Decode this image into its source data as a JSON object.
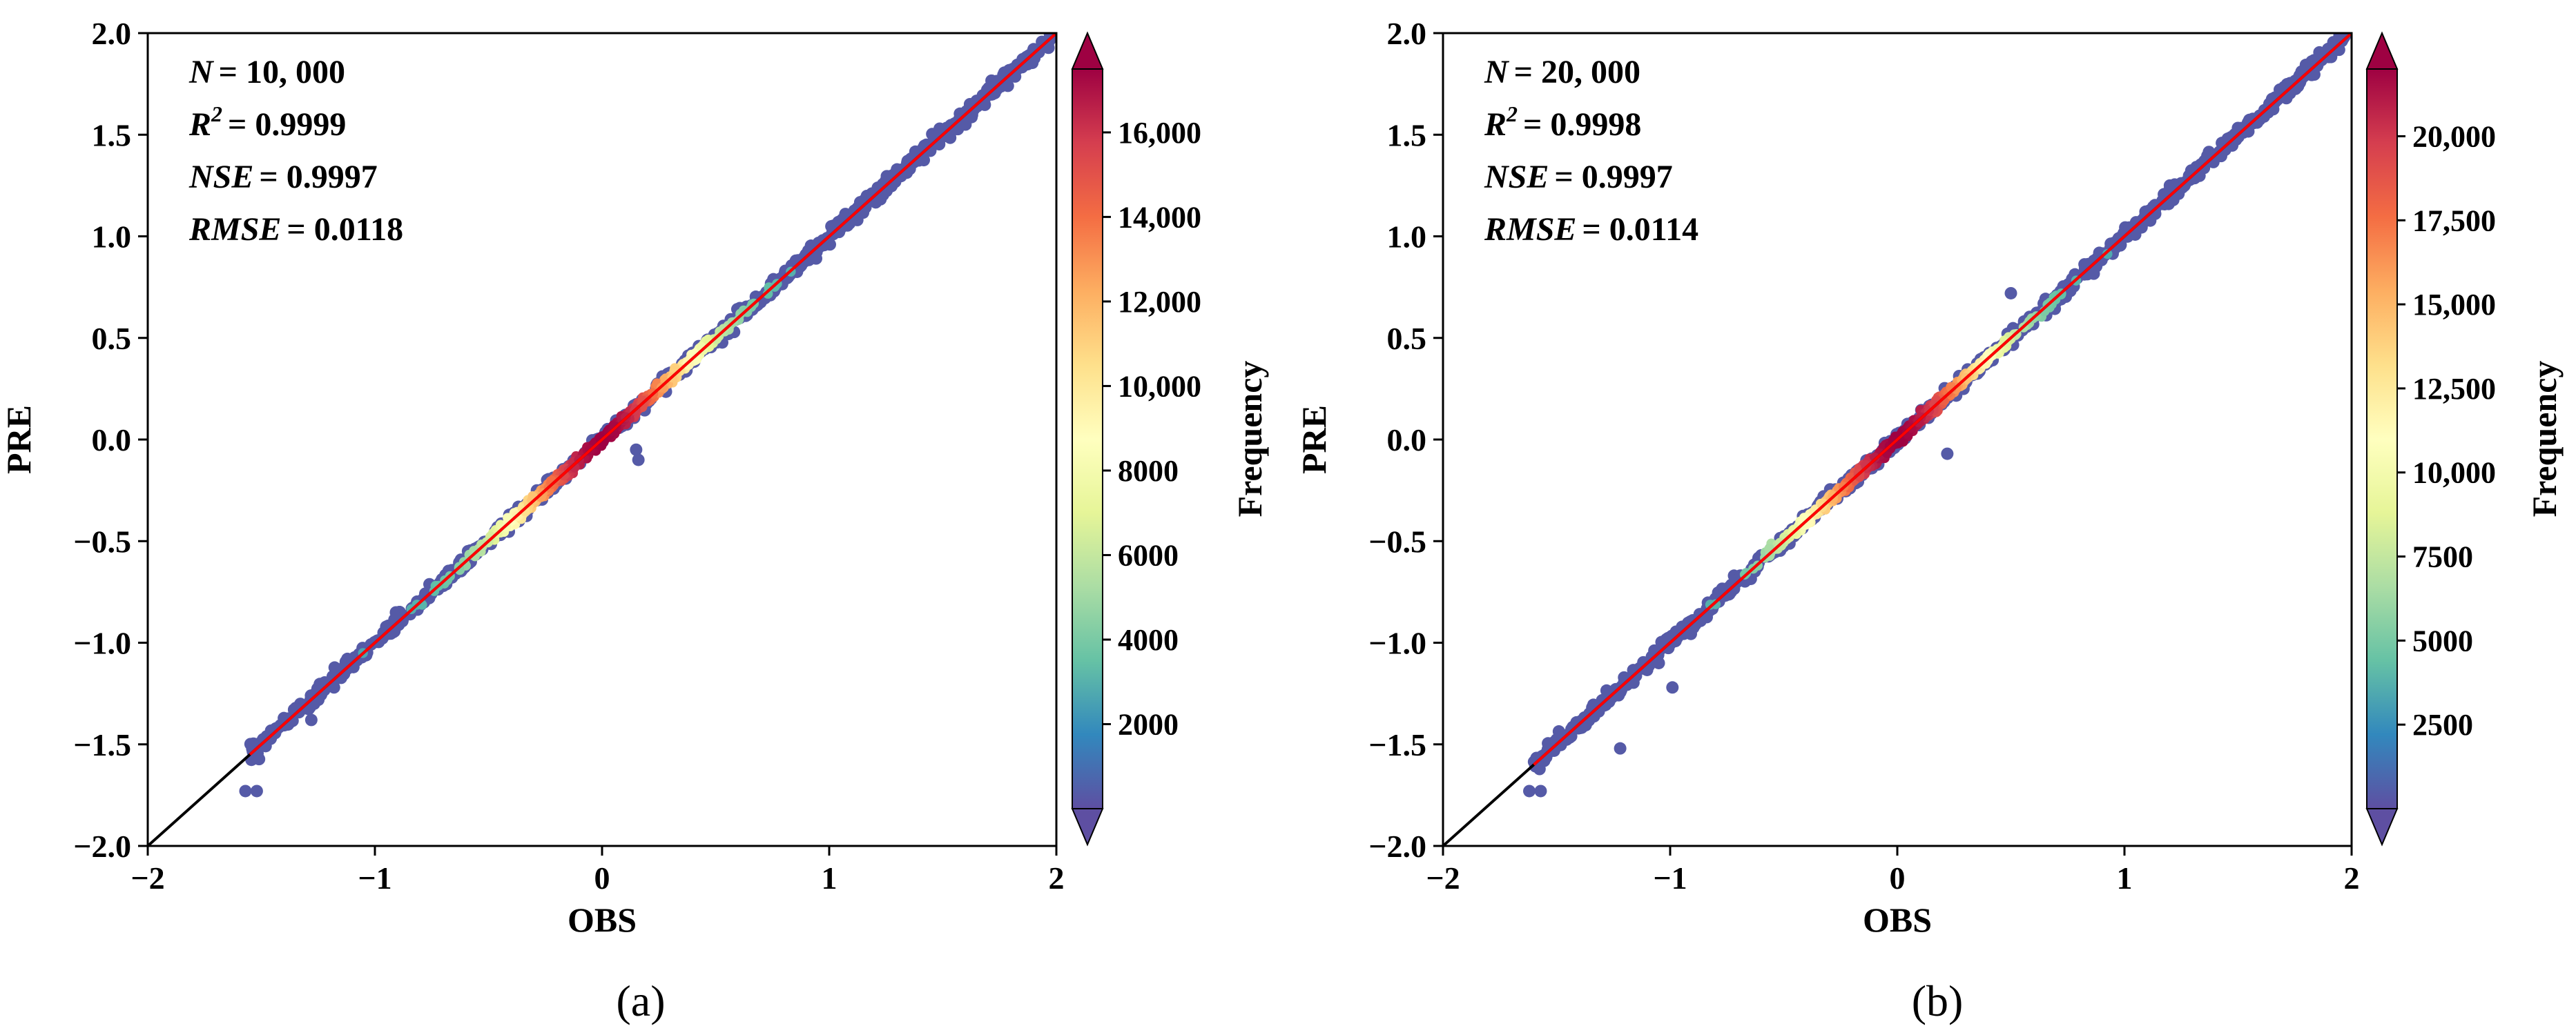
{
  "chart_data": [
    {
      "type": "scatter",
      "subplot_label": "(a)",
      "xlabel": "OBS",
      "ylabel": "PRE",
      "xlim": [
        -2,
        2
      ],
      "ylim": [
        -2,
        2
      ],
      "xticks": [
        -2,
        -1,
        0,
        1,
        2
      ],
      "xtick_labels": [
        "−2",
        "−1",
        "0",
        "1",
        "2"
      ],
      "yticks": [
        -2.0,
        -1.5,
        -1.0,
        -0.5,
        0.0,
        0.5,
        1.0,
        1.5,
        2.0
      ],
      "ytick_labels": [
        "−2.0",
        "−1.5",
        "−1.0",
        "−0.5",
        "0.0",
        "0.5",
        "1.0",
        "1.5",
        "2.0"
      ],
      "stats": {
        "n_label": "N",
        "n_value": "= 10, 000",
        "r2_label": "R",
        "r2_sup": "2",
        "r2_value": "= 0.9999",
        "nse_label": "NSE",
        "nse_value": "= 0.9997",
        "rmse_label": "RMSE",
        "rmse_value": "= 0.0118"
      },
      "reference_line": {
        "from": [
          -2,
          -2
        ],
        "to": [
          2,
          2
        ],
        "color": "#000000"
      },
      "fit_line": {
        "from": [
          -1.55,
          -1.55
        ],
        "to": [
          2,
          2
        ],
        "color": "#ff0000"
      },
      "data_range_x": [
        -1.55,
        1.98
      ],
      "outliers": [
        {
          "x": -1.57,
          "y": -1.73
        },
        {
          "x": -1.52,
          "y": -1.73
        },
        {
          "x": 0.15,
          "y": -0.05
        },
        {
          "x": 0.16,
          "y": -0.1
        },
        {
          "x": -1.28,
          "y": -1.38
        },
        {
          "x": -1.18,
          "y": -1.22
        },
        {
          "x": 1.6,
          "y": 1.55
        }
      ],
      "colorbar": {
        "label": "Frequency",
        "min": 0,
        "max": 17500,
        "ticks": [
          2000,
          4000,
          6000,
          8000,
          10000,
          12000,
          14000,
          16000
        ],
        "tick_labels": [
          "2000",
          "4000",
          "6000",
          "8000",
          "10,000",
          "12,000",
          "14,000",
          "16,000"
        ],
        "cmap": [
          "#5e4fa2",
          "#3288bd",
          "#66c2a5",
          "#abdda4",
          "#e6f598",
          "#ffffbf",
          "#fee08b",
          "#fdae61",
          "#f46d43",
          "#d53e4f",
          "#9e0142"
        ]
      }
    },
    {
      "type": "scatter",
      "subplot_label": "(b)",
      "xlabel": "OBS",
      "ylabel": "PRE",
      "xlim": [
        -2,
        2
      ],
      "ylim": [
        -2,
        2
      ],
      "xticks": [
        -2,
        -1,
        0,
        1,
        2
      ],
      "xtick_labels": [
        "−2",
        "−1",
        "0",
        "1",
        "2"
      ],
      "yticks": [
        -2.0,
        -1.5,
        -1.0,
        -0.5,
        0.0,
        0.5,
        1.0,
        1.5,
        2.0
      ],
      "ytick_labels": [
        "−2.0",
        "−1.5",
        "−1.0",
        "−0.5",
        "0.0",
        "0.5",
        "1.0",
        "1.5",
        "2.0"
      ],
      "stats": {
        "n_label": "N",
        "n_value": "= 20, 000",
        "r2_label": "R",
        "r2_sup": "2",
        "r2_value": "= 0.9998",
        "nse_label": "NSE",
        "nse_value": "= 0.9997",
        "rmse_label": "RMSE",
        "rmse_value": "= 0.0114"
      },
      "reference_line": {
        "from": [
          -2,
          -2
        ],
        "to": [
          2,
          2
        ],
        "color": "#000000"
      },
      "fit_line": {
        "from": [
          -1.6,
          -1.6
        ],
        "to": [
          2,
          2
        ],
        "color": "#ff0000"
      },
      "data_range_x": [
        -1.6,
        1.98
      ],
      "outliers": [
        {
          "x": -1.62,
          "y": -1.73
        },
        {
          "x": -1.57,
          "y": -1.73
        },
        {
          "x": -1.22,
          "y": -1.52
        },
        {
          "x": -0.99,
          "y": -1.22
        },
        {
          "x": -1.05,
          "y": -1.1
        },
        {
          "x": 0.22,
          "y": -0.07
        },
        {
          "x": 0.5,
          "y": 0.72
        },
        {
          "x": 1.2,
          "y": 1.25
        }
      ],
      "colorbar": {
        "label": "Frequency",
        "min": 0,
        "max": 22000,
        "ticks": [
          2500,
          5000,
          7500,
          10000,
          12500,
          15000,
          17500,
          20000
        ],
        "tick_labels": [
          "2500",
          "5000",
          "7500",
          "10,000",
          "12,500",
          "15,000",
          "17,500",
          "20,000"
        ],
        "cmap": [
          "#5e4fa2",
          "#3288bd",
          "#66c2a5",
          "#abdda4",
          "#e6f598",
          "#ffffbf",
          "#fee08b",
          "#fdae61",
          "#f46d43",
          "#d53e4f",
          "#9e0142"
        ]
      }
    }
  ]
}
